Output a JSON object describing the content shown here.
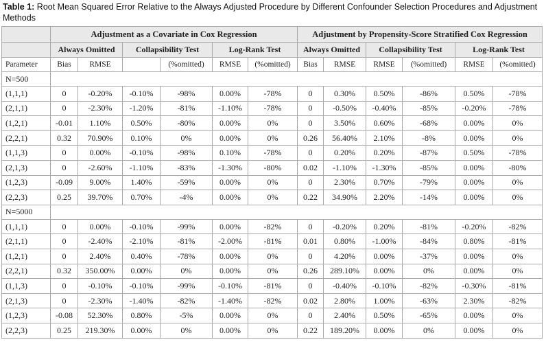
{
  "caption": {
    "label": "Table 1:",
    "text": "Root Mean Squared Error Relative to the Always Adjusted Procedure by Different Confounder Selection Procedures and Adjustment Methods"
  },
  "table": {
    "group_headers": [
      "Adjustment as a Covariate in Cox Regression",
      "Adjustment by Propensity-Score Stratified Cox Regression"
    ],
    "sub_headers": [
      "Always Omitted",
      "Collapsibility Test",
      "Log-Rank Test",
      "Always Omitted",
      "Collapsibility Test",
      "Log-Rank Test"
    ],
    "column_headers": [
      "Parameter",
      "Bias",
      "RMSE",
      null,
      "(%omitted)",
      "RMSE",
      "(%omitted)",
      "Bias",
      "RMSE",
      "RMSE",
      "(%omitted)",
      "RMSE",
      "(%omitted)"
    ],
    "sections": [
      {
        "label": "N=500",
        "rows": [
          [
            "(1,1,1)",
            "0",
            "-0.20%",
            "-0.10%",
            "-98%",
            "0.00%",
            "-78%",
            "0",
            "0.30%",
            "0.50%",
            "-86%",
            "0.50%",
            "-78%"
          ],
          [
            "(2,1,1)",
            "0",
            "-2.30%",
            "-1.20%",
            "-81%",
            "-1.10%",
            "-78%",
            "0",
            "-0.50%",
            "-0.40%",
            "-85%",
            "-0.20%",
            "-78%"
          ],
          [
            "(1,2,1)",
            "-0.01",
            "1.10%",
            "0.50%",
            "-80%",
            "0.00%",
            "0%",
            "0",
            "3.50%",
            "0.60%",
            "-68%",
            "0.00%",
            "0%"
          ],
          [
            "(2,2,1)",
            "0.32",
            "70.90%",
            "0.10%",
            "0%",
            "0.00%",
            "0%",
            "0.26",
            "56.40%",
            "2.10%",
            "-8%",
            "0.00%",
            "0%"
          ],
          [
            "(1,1,3)",
            "0",
            "0.00%",
            "-0.10%",
            "-98%",
            "0.10%",
            "-78%",
            "0",
            "0.20%",
            "0.20%",
            "-87%",
            "0.50%",
            "-78%"
          ],
          [
            "(2,1,3)",
            "0",
            "-2.60%",
            "-1.10%",
            "-83%",
            "-1.30%",
            "-80%",
            "0.02",
            "-1.10%",
            "-1.30%",
            "-85%",
            "0.00%",
            "-80%"
          ],
          [
            "(1,2,3)",
            "-0.09",
            "9.00%",
            "1.40%",
            "-59%",
            "0.00%",
            "0%",
            "0",
            "2.30%",
            "0.70%",
            "-79%",
            "0.00%",
            "0%"
          ],
          [
            "(2,2,3)",
            "0.25",
            "39.70%",
            "0.70%",
            "-4%",
            "0.00%",
            "0%",
            "0.22",
            "34.90%",
            "2.20%",
            "-14%",
            "0.00%",
            "0%"
          ]
        ]
      },
      {
        "label": "N=5000",
        "rows": [
          [
            "(1,1,1)",
            "0",
            "0.00%",
            "-0.10%",
            "-99%",
            "0.00%",
            "-82%",
            "0",
            "-0.20%",
            "0.20%",
            "-81%",
            "-0.20%",
            "-82%"
          ],
          [
            "(2,1,1)",
            "0",
            "-2.40%",
            "-2.10%",
            "-81%",
            "-2.00%",
            "-81%",
            "0.01",
            "0.80%",
            "-1.00%",
            "-84%",
            "0.80%",
            "-81%"
          ],
          [
            "(1,2,1)",
            "0",
            "2.40%",
            "0.40%",
            "-78%",
            "0.00%",
            "0%",
            "0",
            "4.20%",
            "0.00%",
            "-37%",
            "0.00%",
            "0%"
          ],
          [
            "(2,2,1)",
            "0.32",
            "350.00%",
            "0.00%",
            "0%",
            "0.00%",
            "0%",
            "0.26",
            "289.10%",
            "0.00%",
            "0%",
            "0.00%",
            "0%"
          ],
          [
            "(1,1,3)",
            "0",
            "-0.10%",
            "-0.10%",
            "-99%",
            "-0.10%",
            "-81%",
            "0",
            "-0.40%",
            "-0.10%",
            "-82%",
            "-0.30%",
            "-81%"
          ],
          [
            "(2,1,3)",
            "0",
            "-2.30%",
            "-1.40%",
            "-82%",
            "-1.40%",
            "-82%",
            "0.02",
            "2.80%",
            "1.00%",
            "-63%",
            "2.30%",
            "-82%"
          ],
          [
            "(1,2,3)",
            "-0.08",
            "52.30%",
            "0.80%",
            "-5%",
            "0.00%",
            "0%",
            "0",
            "2.40%",
            "0.50%",
            "-65%",
            "0.00%",
            "0%"
          ],
          [
            "(2,2,3)",
            "0.25",
            "219.30%",
            "0.00%",
            "0%",
            "0.00%",
            "0%",
            "0.22",
            "189.20%",
            "0.00%",
            "0%",
            "0.00%",
            "0%"
          ]
        ]
      }
    ]
  }
}
